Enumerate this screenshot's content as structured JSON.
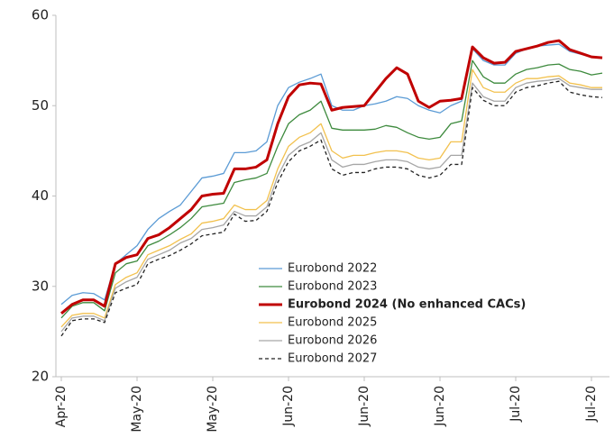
{
  "chart_data": {
    "type": "line",
    "categories": [
      "Apr-20",
      null,
      null,
      null,
      null,
      null,
      null,
      "May-20",
      null,
      null,
      null,
      null,
      null,
      null,
      "May-20",
      null,
      null,
      null,
      null,
      null,
      null,
      "Jun-20",
      null,
      null,
      null,
      null,
      null,
      null,
      "Jun-20",
      null,
      null,
      null,
      null,
      null,
      null,
      "Jun-20",
      null,
      null,
      null,
      null,
      null,
      null,
      "Jul-20",
      null,
      null,
      null,
      null,
      null,
      null,
      "Jul-20",
      null
    ],
    "ylim": [
      20,
      60
    ],
    "yticks": [
      20,
      30,
      40,
      50,
      60
    ],
    "grid": false,
    "series": [
      {
        "name": "Eurobond 2022",
        "color": "#5b9bd5",
        "values": [
          28,
          29,
          29.3,
          29.2,
          28.5,
          32.5,
          33.5,
          34.5,
          36.3,
          37.5,
          38.3,
          39,
          40.5,
          42,
          42.2,
          42.5,
          44.8,
          44.8,
          45,
          46,
          50,
          52,
          52.6,
          53,
          53.5,
          50,
          49.5,
          49.5,
          50,
          50.2,
          50.5,
          51,
          50.8,
          50,
          49.5,
          49.2,
          50,
          50.5,
          56.3,
          55,
          54.5,
          54.5,
          55.8,
          56.3,
          56.6,
          56.7,
          56.8,
          56,
          55.7,
          55.4,
          55.3
        ]
      },
      {
        "name": "Eurobond 2023",
        "color": "#3d8a3d",
        "values": [
          26.5,
          27.8,
          28.2,
          28.2,
          27.3,
          31.5,
          32.5,
          32.8,
          34.5,
          35,
          35.7,
          36.5,
          37.5,
          38.8,
          39,
          39.2,
          41.5,
          41.8,
          42,
          42.5,
          45.5,
          48,
          49,
          49.5,
          50.5,
          47.5,
          47.3,
          47.3,
          47.3,
          47.4,
          47.8,
          47.6,
          47,
          46.5,
          46.3,
          46.5,
          48,
          48.3,
          55,
          53.2,
          52.5,
          52.5,
          53.5,
          54,
          54.2,
          54.5,
          54.6,
          54,
          53.8,
          53.4,
          53.6
        ]
      },
      {
        "name": "Eurobond 2024 (No enhanced CACs)",
        "color": "#c00000",
        "bold": true,
        "values": [
          27,
          28,
          28.5,
          28.5,
          27.8,
          32.5,
          33.2,
          33.5,
          35.3,
          35.7,
          36.5,
          37.5,
          38.5,
          40,
          40.2,
          40.3,
          43,
          43,
          43.2,
          44,
          48,
          51,
          52.3,
          52.5,
          52.4,
          49.5,
          49.8,
          49.9,
          50,
          51.5,
          53,
          54.2,
          53.5,
          50.5,
          49.8,
          50.5,
          50.6,
          50.8,
          56.5,
          55.3,
          54.7,
          54.8,
          56,
          56.3,
          56.6,
          57,
          57.2,
          56.2,
          55.8,
          55.4,
          55.3
        ]
      },
      {
        "name": "Eurobond 2025",
        "color": "#f2c14e",
        "values": [
          25.5,
          26.8,
          27,
          27,
          26.5,
          30.2,
          31,
          31.5,
          33.5,
          34,
          34.5,
          35.2,
          35.8,
          37,
          37.2,
          37.5,
          39,
          38.5,
          38.5,
          39.5,
          43,
          45.5,
          46.5,
          47,
          48,
          45,
          44.2,
          44.5,
          44.5,
          44.8,
          45,
          45,
          44.8,
          44.2,
          44,
          44.2,
          46,
          46,
          54,
          52,
          51.5,
          51.5,
          52.5,
          53,
          53,
          53.2,
          53.3,
          52.5,
          52.3,
          52,
          52
        ]
      },
      {
        "name": "Eurobond 2026",
        "color": "#a6a6a6",
        "values": [
          25,
          26.5,
          26.7,
          26.7,
          26.2,
          29.8,
          30.5,
          31,
          33,
          33.5,
          34,
          34.8,
          35.3,
          36.3,
          36.5,
          36.8,
          38.3,
          37.8,
          37.8,
          38.8,
          42.2,
          44.5,
          45.5,
          46,
          47,
          44,
          43.2,
          43.5,
          43.5,
          43.8,
          44,
          44,
          43.8,
          43.2,
          43,
          43.2,
          44.5,
          44.5,
          52.5,
          51,
          50.5,
          50.5,
          52,
          52.5,
          52.7,
          52.8,
          53,
          52.2,
          52,
          51.8,
          51.8
        ]
      },
      {
        "name": "Eurobond 2027",
        "color": "#222222",
        "dashed": true,
        "values": [
          24.5,
          26.2,
          26.4,
          26.4,
          26,
          29.3,
          29.8,
          30.2,
          32.5,
          33,
          33.4,
          34,
          34.7,
          35.6,
          35.8,
          36,
          38,
          37.2,
          37.3,
          38.3,
          41.5,
          43.8,
          45,
          45.5,
          46.2,
          43,
          42.3,
          42.6,
          42.6,
          43,
          43.2,
          43.2,
          43,
          42.3,
          42,
          42.3,
          43.5,
          43.5,
          52,
          50.6,
          50,
          50,
          51.5,
          52,
          52.2,
          52.5,
          52.7,
          51.5,
          51.2,
          51,
          50.9
        ]
      }
    ]
  }
}
